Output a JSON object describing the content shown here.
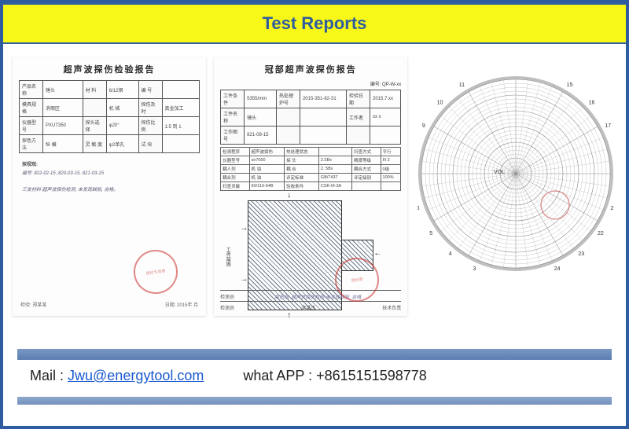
{
  "header": {
    "title": "Test Reports"
  },
  "report1": {
    "title": "超声波探伤检验报告",
    "rows": [
      [
        "产品名称",
        "锤头",
        "材 料",
        "6/12钢",
        "编 号",
        ""
      ],
      [
        "模具规格",
        "消瑕区",
        "",
        "机 械",
        "探伤及时",
        "真金加工"
      ],
      [
        "仪器型号",
        "PXUT350",
        "探头选择",
        "φ20°",
        "探伤比例",
        "1:5 到 1"
      ],
      [
        "探色方法",
        "纵 横",
        "灵 敏 度",
        "ψ2单孔",
        "试 块",
        ""
      ]
    ],
    "annotation_label": "探视观:",
    "annotation_lines": [
      "编号: 822-02-15, 820-03-15,  821-03-15",
      "三支材料 超声波探伤检测, 未发现缺陷, 合格。"
    ],
    "signature_left": "检验: 郑某某",
    "signature_right": "日期: 2015年 月",
    "stamp_text": "质检专用章"
  },
  "report2": {
    "title": "冠部超声波探伤报告",
    "subline": "编号: QP-W-xx",
    "top_rows": [
      [
        "工件条件",
        "5355/mm",
        "热处理炉号",
        "2015-351-82-31",
        "检验日期",
        "2015.7.xx"
      ],
      [
        "工件名称",
        "锤头",
        "",
        "",
        "工作者",
        "xx x"
      ],
      [
        "工作图号",
        "821-08-15",
        "",
        "",
        "",
        ""
      ]
    ],
    "small_rows": [
      [
        "检测程序",
        "超声波探伤",
        "热处理状态",
        "",
        "扫查方式",
        "平行"
      ],
      [
        "仪器型号",
        "se7000",
        "探 头",
        "2.5Bx",
        "精度等级",
        "III 2"
      ],
      [
        "耦人剂",
        "机 油",
        "耦 合",
        "2. 5Bx",
        "耦合方式",
        "0级"
      ],
      [
        "耦合剂",
        "机 油",
        "评定标准",
        "GB/7437",
        "评定级别",
        "100%"
      ],
      [
        "扫查灵敏",
        "60/110-64B",
        "验收条件",
        "CSK-III-3A",
        "",
        ""
      ]
    ],
    "side_label": "工件简图",
    "footer_left": "检测员",
    "footer_mid1": "探伤测, 超声波探伤检测 未发现缺陷, 合格",
    "footer_left2": "检测员",
    "footer_mid2": "李某杰",
    "footer_right2": "技术负责",
    "stamp_text": "质检章"
  },
  "report3": {
    "ring_count": 24,
    "spoke_count": 48,
    "outer_radius": 120,
    "axis_label": "VOL",
    "tick_labels": [
      "13",
      "14",
      "15",
      "16",
      "17",
      "18",
      "20",
      "21",
      "22",
      "23",
      "24",
      "1",
      "2",
      "3",
      "4",
      "5",
      "6",
      "7",
      "8",
      "9",
      "10",
      "11",
      "12"
    ],
    "grid_color": "#888888",
    "needle_color": "#c02828"
  },
  "contact": {
    "mail_label": "Mail : ",
    "mail": "Jwu@energytool.com",
    "whatsapp_label": "what APP : ",
    "whatsapp": "+8615151598778"
  },
  "colors": {
    "frame": "#2e5c9e",
    "banner_bg": "#f8f818",
    "divider": "#6a8cbe"
  }
}
